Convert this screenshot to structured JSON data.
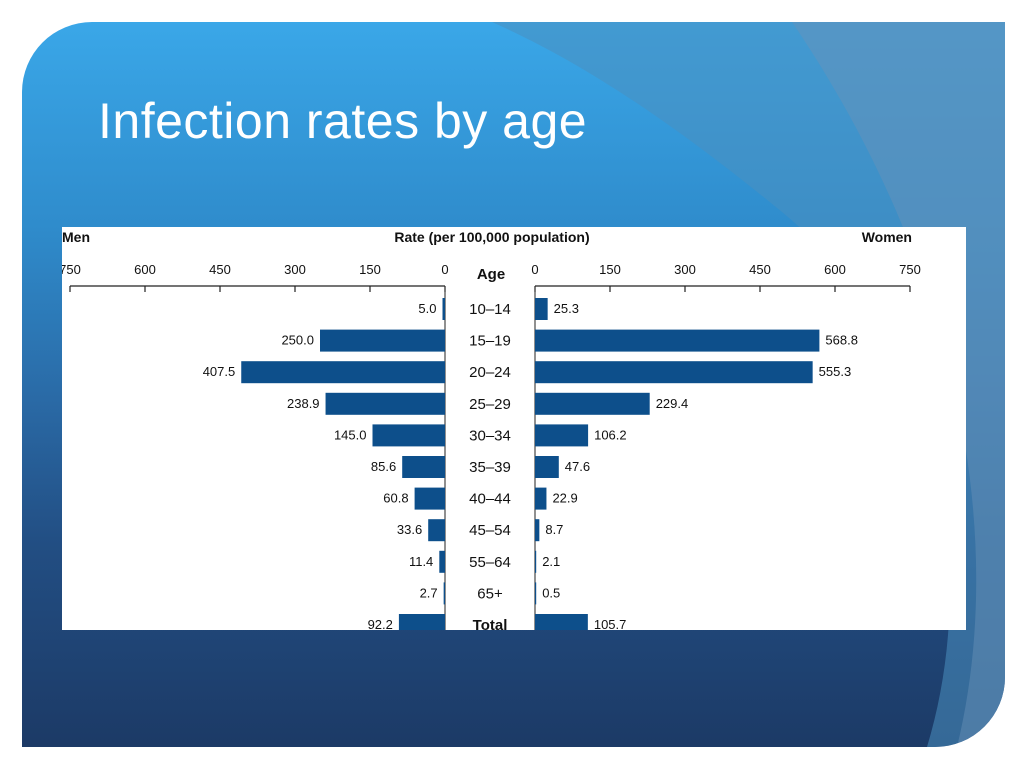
{
  "slide": {
    "title": "Infection rates by age"
  },
  "chart_data": {
    "type": "bar",
    "orientation": "horizontal",
    "layout": "back-to-back",
    "title": "Rate (per 100,000 population)",
    "category_label": "Age",
    "left_label": "Men",
    "right_label": "Women",
    "xlim": [
      0,
      750
    ],
    "ticks": [
      "750",
      "600",
      "450",
      "300",
      "150",
      "0"
    ],
    "ticks_right": [
      "0",
      "150",
      "300",
      "450",
      "600",
      "750"
    ],
    "categories": [
      "10–14",
      "15–19",
      "20–24",
      "25–29",
      "30–34",
      "35–39",
      "40–44",
      "45–54",
      "55–64",
      "65+",
      "Total"
    ],
    "series": [
      {
        "name": "Men",
        "values": [
          5.0,
          250.0,
          407.5,
          238.9,
          145.0,
          85.6,
          60.8,
          33.6,
          11.4,
          2.7,
          92.2
        ],
        "labels": [
          "5.0",
          "250.0",
          "407.5",
          "238.9",
          "145.0",
          "85.6",
          "60.8",
          "33.6",
          "11.4",
          "2.7",
          "92.2"
        ]
      },
      {
        "name": "Women",
        "values": [
          25.3,
          568.8,
          555.3,
          229.4,
          106.2,
          47.6,
          22.9,
          8.7,
          2.1,
          0.5,
          105.7
        ],
        "labels": [
          "25.3",
          "568.8",
          "555.3",
          "229.4",
          "106.2",
          "47.6",
          "22.9",
          "8.7",
          "2.1",
          "0.5",
          "105.7"
        ]
      }
    ],
    "bar_color": "#0d4f8b",
    "grid": false
  }
}
